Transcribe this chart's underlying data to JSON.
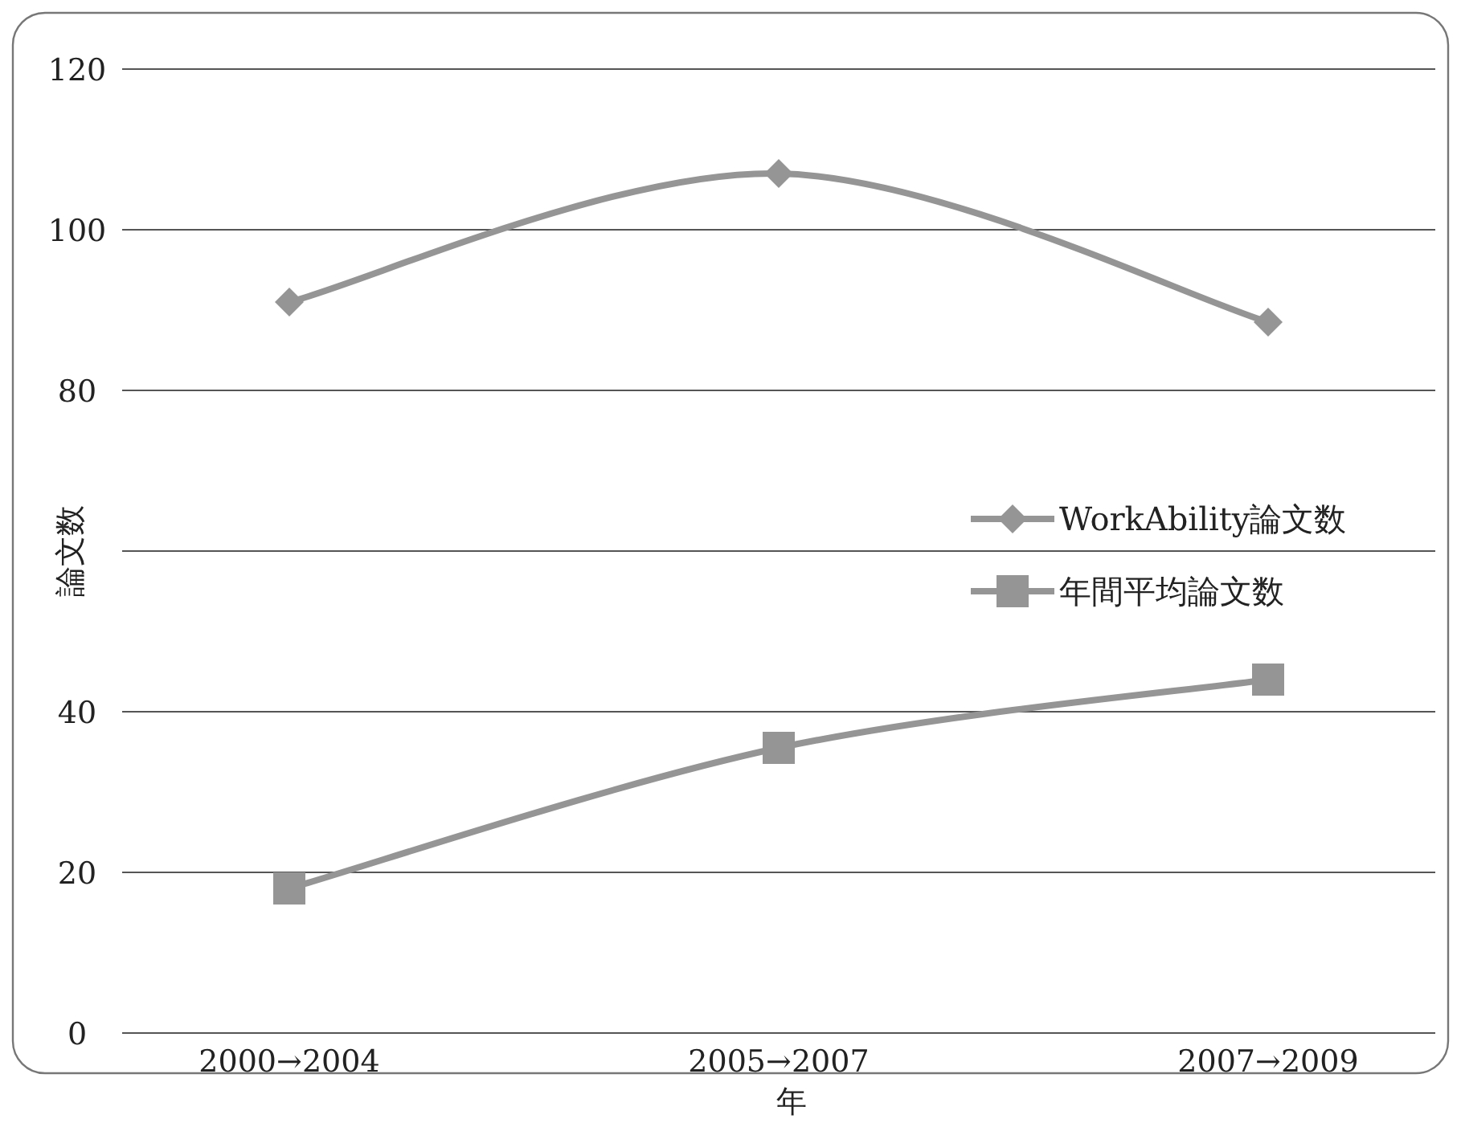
{
  "chart_data": {
    "type": "line",
    "xlabel": "年",
    "ylabel": "論文数",
    "categories": [
      "2000→2004",
      "2005→2007",
      "2007→2009"
    ],
    "series": [
      {
        "name": "WorkAbility論文数",
        "color": "#959595",
        "marker": "diamond",
        "values": [
          91,
          107,
          88.5
        ]
      },
      {
        "name": "年間平均論文数",
        "color": "#959595",
        "marker": "square",
        "values": [
          18,
          35.5,
          44
        ]
      }
    ],
    "ylim": [
      0,
      120
    ],
    "yticks": [
      0,
      20,
      40,
      {
        "value": 60,
        "label": null
      },
      80,
      100,
      120
    ],
    "grid": "y",
    "legend": "right"
  }
}
